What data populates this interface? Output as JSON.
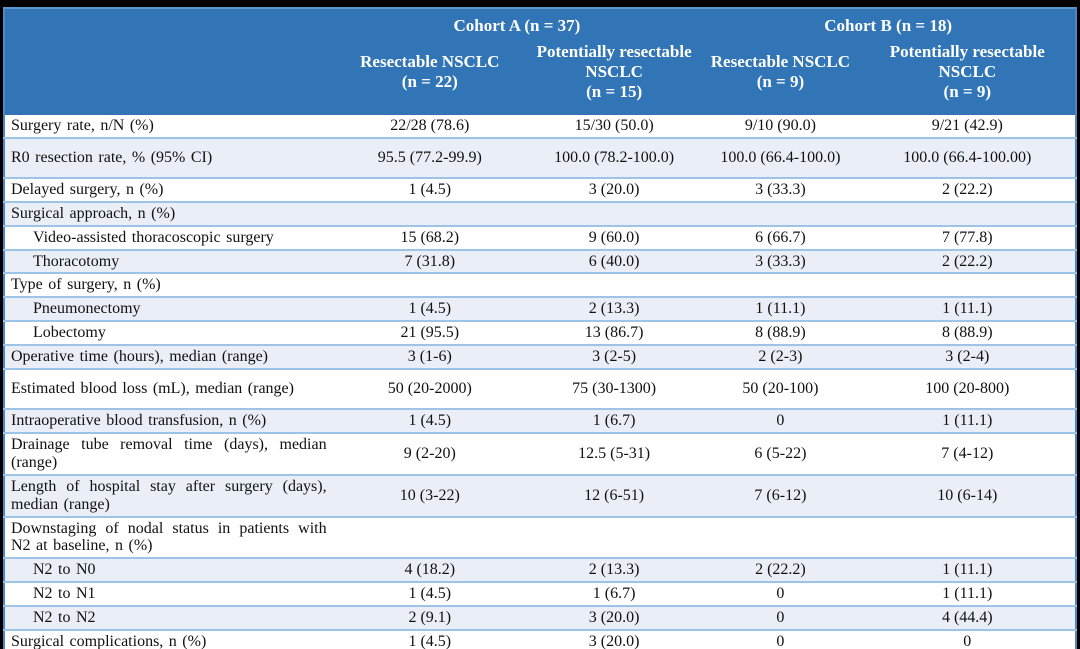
{
  "table": {
    "header": {
      "cohort_a": "Cohort A (n = 37)",
      "cohort_b": "Cohort B (n = 18)",
      "columns": [
        {
          "title": "Resectable NSCLC",
          "n": "(n = 22)"
        },
        {
          "title": "Potentially resectable NSCLC",
          "n": "(n = 15)"
        },
        {
          "title": "Resectable NSCLC",
          "n": "(n = 9)"
        },
        {
          "title": "Potentially resectable NSCLC",
          "n": "(n = 9)"
        }
      ]
    },
    "rows": [
      {
        "label": "Surgery rate, n/N (%)",
        "values": [
          "22/28 (78.6)",
          "15/30 (50.0)",
          "9/10 (90.0)",
          "9/21 (42.9)"
        ]
      },
      {
        "label": "R0 resection rate, % (95% CI)",
        "tall": true,
        "values": [
          "95.5 (77.2-99.9)",
          "100.0 (78.2-100.0)",
          "100.0 (66.4-100.0)",
          "100.0 (66.4-100.00)"
        ]
      },
      {
        "label": "Delayed surgery, n (%)",
        "values": [
          "1 (4.5)",
          "3 (20.0)",
          "3 (33.3)",
          "2 (22.2)"
        ]
      },
      {
        "label": "Surgical approach, n (%)",
        "section": true,
        "values": [
          "",
          "",
          "",
          ""
        ]
      },
      {
        "label": "Video-assisted thoracoscopic surgery",
        "indent": true,
        "values": [
          "15 (68.2)",
          "9 (60.0)",
          "6 (66.7)",
          "7 (77.8)"
        ]
      },
      {
        "label": "Thoracotomy",
        "indent": true,
        "values": [
          "7 (31.8)",
          "6 (40.0)",
          "3 (33.3)",
          "2 (22.2)"
        ]
      },
      {
        "label": "Type of surgery, n (%)",
        "section": true,
        "values": [
          "",
          "",
          "",
          ""
        ]
      },
      {
        "label": "Pneumonectomy",
        "indent": true,
        "values": [
          "1 (4.5)",
          "2 (13.3)",
          "1 (11.1)",
          "1 (11.1)"
        ]
      },
      {
        "label": "Lobectomy",
        "indent": true,
        "values": [
          "21 (95.5)",
          "13 (86.7)",
          "8 (88.9)",
          "8 (88.9)"
        ]
      },
      {
        "label": "Operative time (hours), median (range)",
        "values": [
          "3 (1-6)",
          "3 (2-5)",
          "2 (2-3)",
          "3 (2-4)"
        ]
      },
      {
        "label": "Estimated blood loss (mL), median (range)",
        "tall": true,
        "values": [
          "50 (20-2000)",
          "75 (30-1300)",
          "50 (20-100)",
          "100 (20-800)"
        ]
      },
      {
        "label": "Intraoperative blood transfusion, n (%)",
        "values": [
          "1 (4.5)",
          "1 (6.7)",
          "0",
          "1 (11.1)"
        ]
      },
      {
        "label": "Drainage tube removal time (days), median (range)",
        "values": [
          "9 (2-20)",
          "12.5 (5-31)",
          "6 (5-22)",
          "7 (4-12)"
        ]
      },
      {
        "label": "Length of hospital stay after surgery (days), median (range)",
        "values": [
          "10 (3-22)",
          "12 (6-51)",
          "7 (6-12)",
          "10 (6-14)"
        ]
      },
      {
        "label": "Downstaging of nodal status in patients with N2 at baseline, n (%)",
        "section": true,
        "values": [
          "",
          "",
          "",
          ""
        ]
      },
      {
        "label": "N2 to N0",
        "indent": true,
        "values": [
          "4 (18.2)",
          "2 (13.3)",
          "2 (22.2)",
          "1 (11.1)"
        ]
      },
      {
        "label": "N2 to N1",
        "indent": true,
        "values": [
          "1 (4.5)",
          "1 (6.7)",
          "0",
          "1 (11.1)"
        ]
      },
      {
        "label": "N2 to N2",
        "indent": true,
        "values": [
          "2 (9.1)",
          "3 (20.0)",
          "0",
          "4 (44.4)"
        ]
      },
      {
        "label": "Surgical complications, n (%)",
        "values": [
          "1 (4.5)",
          "3 (20.0)",
          "0",
          "0"
        ]
      }
    ],
    "colors": {
      "header_bg": "#3175b6",
      "shaded_row_bg": "#e9eef7",
      "row_divider": "#9dc3e6",
      "outer_border": "#4f86c6",
      "bottom_border": "#2e77c3",
      "header_text": "#ffffff",
      "body_text": "#111111",
      "page_frame": "#000000"
    }
  }
}
